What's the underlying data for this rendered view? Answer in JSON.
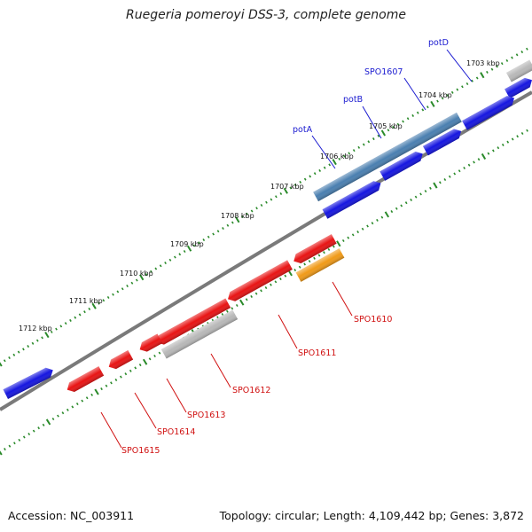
{
  "title": "Ruegeria pomeroyi DSS-3, complete genome",
  "footer": {
    "accession": "Accession: NC_003911",
    "summary": "Topology: circular; Length: 4,109,442 bp; Genes: 3,872"
  },
  "colors": {
    "backbone": "#7a7a7a",
    "tick": "#2a8a2a",
    "forward_gene": "#1616e0",
    "reverse_gene": "#e81414",
    "pseudo_gene": "#b8b8b8",
    "highlight_gene": "#4a7fb0",
    "orange_gene": "#f09a18"
  },
  "kbp_labels": [
    "1703 kbp",
    "1704 kbp",
    "1705 kbp",
    "1706 kbp",
    "1707 kbp",
    "1708 kbp",
    "1709 kbp",
    "1710 kbp",
    "1711 kbp",
    "1712 kbp"
  ],
  "gene_labels_top": [
    "potD",
    "SPO1607",
    "potB",
    "potA"
  ],
  "gene_labels_bottom": [
    "SPO1610",
    "SPO1611",
    "SPO1612",
    "SPO1613",
    "SPO1614",
    "SPO1615"
  ]
}
